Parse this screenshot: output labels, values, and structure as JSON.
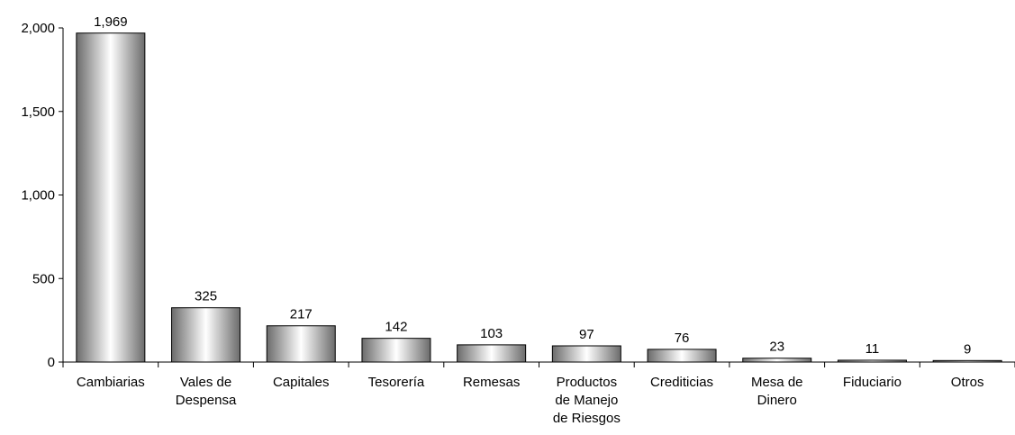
{
  "chart_data": {
    "type": "bar",
    "title": "",
    "xlabel": "",
    "ylabel": "",
    "ylim": [
      0,
      2000
    ],
    "yticks": [
      0,
      500,
      1000,
      1500,
      2000
    ],
    "ytick_labels": [
      "0",
      "500",
      "1,000",
      "1,500",
      "2,000"
    ],
    "grid": false,
    "legend": "none",
    "categories": [
      [
        "Cambiarias"
      ],
      [
        "Vales de",
        "Despensa"
      ],
      [
        "Capitales"
      ],
      [
        "Tesorería"
      ],
      [
        "Remesas"
      ],
      [
        "Productos",
        "de Manejo",
        "de Riesgos"
      ],
      [
        "Crediticias"
      ],
      [
        "Mesa de",
        "Dinero"
      ],
      [
        "Fiduciario"
      ],
      [
        "Otros"
      ]
    ],
    "values": [
      1969,
      325,
      217,
      142,
      103,
      97,
      76,
      23,
      11,
      9
    ],
    "data_labels": [
      "1,969",
      "325",
      "217",
      "142",
      "103",
      "97",
      "76",
      "23",
      "11",
      "9"
    ],
    "colors": {
      "bar_edge": "#000000",
      "bar_dark": "#6b6b6b",
      "bar_light": "#ffffff",
      "axis": "#000000"
    }
  }
}
